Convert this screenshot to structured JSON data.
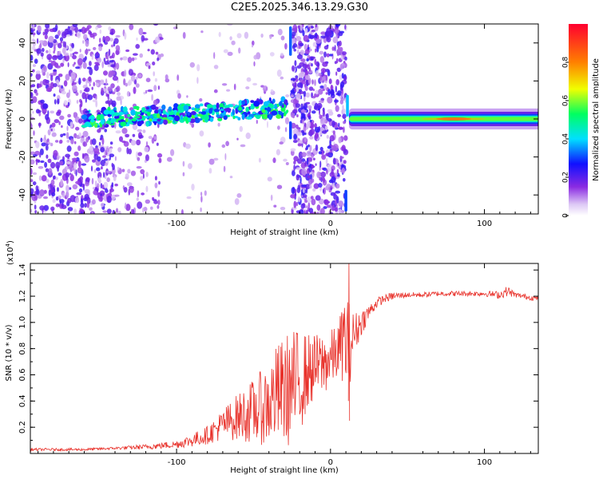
{
  "figure_title": "C2E5.2025.346.13.29.G30",
  "chart_data": [
    {
      "type": "heatmap",
      "title": "C2E5.2025.346.13.29.G30",
      "xlabel": "Height of straight line (km)",
      "ylabel": "Frequency (Hz)",
      "xlim": [
        -195,
        135
      ],
      "ylim": [
        -50,
        50
      ],
      "xticks": [
        -100,
        0,
        100
      ],
      "yticks": [
        -40,
        -20,
        0,
        20,
        40
      ],
      "colorbar": {
        "label": "Normalized spectral amplitude",
        "range": [
          0,
          1
        ],
        "ticks": [
          0.0,
          0.2,
          0.4,
          0.6,
          0.8
        ],
        "colormap": "rainbow: white-violet-purple-blue-cyan-green-yellow-orange-red"
      },
      "features": [
        {
          "name": "Doppler trace",
          "x_range": [
            -160,
            -28
          ],
          "frequency_hz_start": 0,
          "frequency_hz_end": 6
        },
        {
          "name": "strong ridge",
          "x_range": [
            12,
            135
          ],
          "frequency_hz": 0,
          "peak_amplitude": 1.0,
          "peak_x": 80
        }
      ]
    },
    {
      "type": "line",
      "title": "",
      "xlabel": "Height of straight line (km)",
      "ylabel": "SNR (10 * v/v)",
      "y_scale_label": "(x10",
      "y_scale_exponent": "4",
      "y_scale_suffix": ")",
      "xlim": [
        -195,
        135
      ],
      "ylim": [
        0,
        1.45
      ],
      "xticks": [
        -100,
        0,
        100
      ],
      "yticks": [
        0.2,
        0.4,
        0.6,
        0.8,
        1.0,
        1.2,
        1.4
      ],
      "series": [
        {
          "name": "SNR",
          "color": "#e8312a",
          "x": [
            -195,
            -180,
            -160,
            -140,
            -120,
            -100,
            -90,
            -80,
            -70,
            -60,
            -50,
            -40,
            -35,
            -30,
            -25,
            -20,
            -15,
            -10,
            -5,
            0,
            5,
            8,
            10,
            12,
            15,
            20,
            25,
            30,
            35,
            40,
            50,
            60,
            70,
            80,
            90,
            100,
            110,
            115,
            120,
            125,
            135
          ],
          "y": [
            0.03,
            0.03,
            0.03,
            0.04,
            0.05,
            0.07,
            0.1,
            0.14,
            0.22,
            0.28,
            0.32,
            0.38,
            0.45,
            0.48,
            0.5,
            0.55,
            0.62,
            0.66,
            0.68,
            0.72,
            0.78,
            0.85,
            0.88,
            0.82,
            0.9,
            1.0,
            1.08,
            1.15,
            1.18,
            1.2,
            1.21,
            1.21,
            1.22,
            1.22,
            1.22,
            1.22,
            1.21,
            1.24,
            1.21,
            1.2,
            1.18
          ],
          "noise_amplitude": [
            0.01,
            0.01,
            0.01,
            0.01,
            0.02,
            0.03,
            0.05,
            0.07,
            0.12,
            0.18,
            0.25,
            0.32,
            0.38,
            0.42,
            0.45,
            0.4,
            0.3,
            0.25,
            0.25,
            0.22,
            0.22,
            0.3,
            0.45,
            0.35,
            0.18,
            0.1,
            0.06,
            0.04,
            0.03,
            0.03,
            0.02,
            0.02,
            0.02,
            0.02,
            0.02,
            0.02,
            0.03,
            0.04,
            0.02,
            0.02,
            0.02
          ],
          "peak": {
            "x": 12,
            "y": 1.45
          }
        }
      ]
    }
  ]
}
